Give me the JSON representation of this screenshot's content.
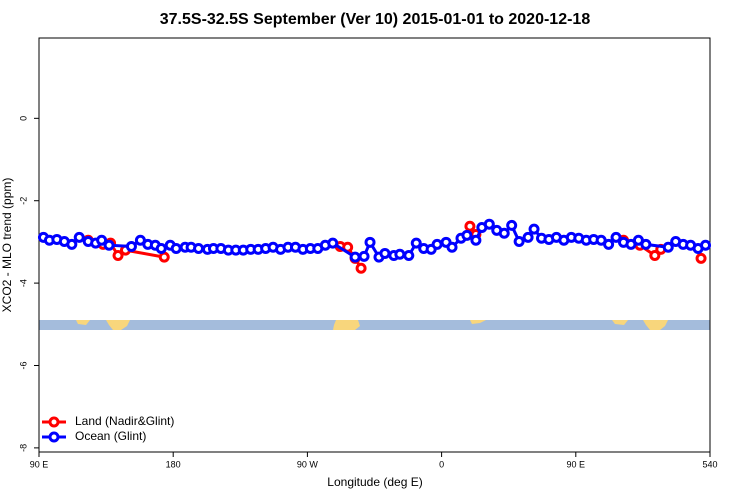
{
  "chart_data": {
    "type": "line",
    "title": "37.5S-32.5S September (Ver 10)   2015-01-01 to 2020-12-18",
    "x_label": "Longitude (deg E)",
    "y_label": "XCO2 - MLO trend (ppm)",
    "xlim": [
      90,
      540
    ],
    "ylim": [
      -8.1,
      1.95
    ],
    "xticks": [
      {
        "value": 90,
        "label": "90 E"
      },
      180,
      {
        "value": 270,
        "label": "90 W"
      },
      {
        "value": 360,
        "label": "0"
      },
      {
        "value": 450,
        "label": "90 E"
      },
      540
    ],
    "yticks": [
      0,
      -2,
      -4,
      -6,
      -8
    ],
    "legend": "bottom-left",
    "series": [
      {
        "name": "Land (Nadir&Glint)",
        "color": "#ff0000",
        "x": [
          123,
          133,
          138,
          143,
          148,
          174,
          null,
          292,
          297,
          302,
          306,
          null,
          379,
          383,
          null,
          482,
          493,
          503,
          507,
          null,
          534
        ],
        "values": [
          -2.96,
          -3.06,
          -3.03,
          -3.33,
          -3.2,
          -3.37,
          null,
          -3.11,
          -3.13,
          -3.4,
          -3.64,
          null,
          -2.62,
          -2.82,
          null,
          -2.96,
          -3.08,
          -3.33,
          -3.18,
          null,
          -3.4
        ]
      },
      {
        "name": "Ocean (Glint)",
        "color": "#0000ff",
        "x": [
          93,
          97,
          102,
          107,
          112,
          117,
          123,
          128,
          132,
          137,
          152,
          158,
          163,
          168,
          172,
          178,
          182,
          188,
          192,
          197,
          203,
          207,
          212,
          217,
          222,
          227,
          232,
          237,
          242,
          247,
          252,
          257,
          262,
          267,
          272,
          277,
          282,
          287,
          302,
          308,
          312,
          318,
          322,
          328,
          332,
          338,
          343,
          348,
          353,
          357,
          363,
          367,
          373,
          377,
          383,
          387,
          392,
          397,
          402,
          407,
          412,
          418,
          422,
          427,
          432,
          437,
          442,
          447,
          452,
          457,
          462,
          467,
          472,
          477,
          482,
          487,
          492,
          497,
          512,
          517,
          522,
          527,
          532,
          537
        ],
        "values": [
          -2.89,
          -2.96,
          -2.94,
          -2.99,
          -3.06,
          -2.89,
          -2.99,
          -3.03,
          -2.96,
          -3.08,
          -3.11,
          -2.96,
          -3.06,
          -3.08,
          -3.16,
          -3.08,
          -3.16,
          -3.13,
          -3.13,
          -3.16,
          -3.18,
          -3.16,
          -3.16,
          -3.2,
          -3.2,
          -3.2,
          -3.18,
          -3.18,
          -3.16,
          -3.13,
          -3.18,
          -3.13,
          -3.13,
          -3.18,
          -3.16,
          -3.16,
          -3.08,
          -3.03,
          -3.37,
          -3.35,
          -3.01,
          -3.37,
          -3.28,
          -3.33,
          -3.3,
          -3.33,
          -3.03,
          -3.16,
          -3.18,
          -3.06,
          -3.01,
          -3.13,
          -2.91,
          -2.84,
          -2.96,
          -2.65,
          -2.57,
          -2.72,
          -2.79,
          -2.6,
          -2.99,
          -2.89,
          -2.69,
          -2.91,
          -2.94,
          -2.89,
          -2.96,
          -2.89,
          -2.91,
          -2.96,
          -2.94,
          -2.96,
          -3.06,
          -2.89,
          -3.01,
          -3.06,
          -2.96,
          -3.06,
          -3.13,
          -2.99,
          -3.06,
          -3.08,
          -3.16,
          -3.08
        ]
      }
    ]
  }
}
